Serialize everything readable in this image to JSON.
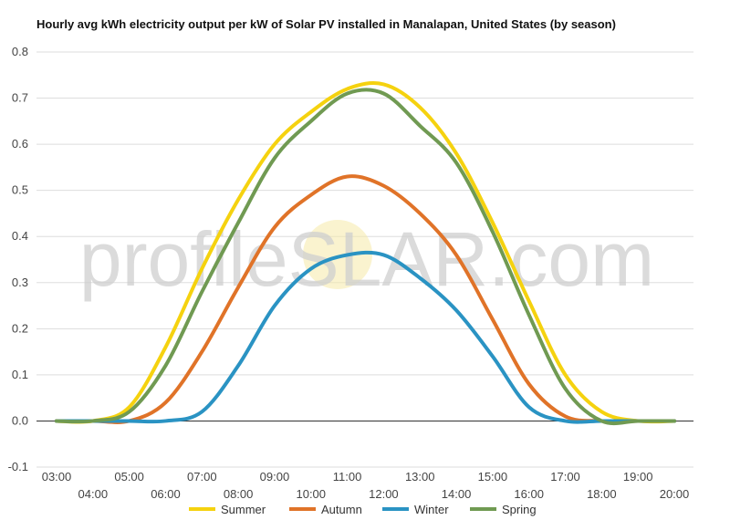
{
  "chart_data": {
    "type": "line",
    "title": "Hourly avg kWh electricity output per kW of Solar PV installed in Manalapan, United States (by season)",
    "xlabel": "",
    "ylabel": "",
    "x": [
      "03:00",
      "04:00",
      "05:00",
      "06:00",
      "07:00",
      "08:00",
      "09:00",
      "10:00",
      "11:00",
      "12:00",
      "13:00",
      "14:00",
      "15:00",
      "16:00",
      "17:00",
      "18:00",
      "19:00",
      "20:00"
    ],
    "ylim": [
      -0.1,
      0.8
    ],
    "yticks": [
      -0.1,
      0.0,
      0.1,
      0.2,
      0.3,
      0.4,
      0.5,
      0.6,
      0.7,
      0.8
    ],
    "grid": true,
    "legend": "bottom",
    "series": [
      {
        "name": "Summer",
        "color": "#f5d20f",
        "values": [
          0.0,
          0.0,
          0.03,
          0.16,
          0.33,
          0.48,
          0.6,
          0.67,
          0.72,
          0.73,
          0.68,
          0.58,
          0.43,
          0.26,
          0.1,
          0.02,
          0.0,
          0.0
        ]
      },
      {
        "name": "Autumn",
        "color": "#e07328",
        "values": [
          0.0,
          0.0,
          0.0,
          0.04,
          0.15,
          0.29,
          0.42,
          0.49,
          0.53,
          0.51,
          0.45,
          0.36,
          0.22,
          0.08,
          0.01,
          0.0,
          0.0,
          0.0
        ]
      },
      {
        "name": "Winter",
        "color": "#2a93c3",
        "values": [
          0.0,
          0.0,
          0.0,
          0.0,
          0.02,
          0.12,
          0.25,
          0.33,
          0.36,
          0.36,
          0.31,
          0.24,
          0.14,
          0.03,
          0.0,
          0.0,
          0.0,
          0.0
        ]
      },
      {
        "name": "Spring",
        "color": "#709a52",
        "values": [
          0.0,
          0.0,
          0.02,
          0.12,
          0.28,
          0.43,
          0.57,
          0.65,
          0.71,
          0.71,
          0.64,
          0.56,
          0.41,
          0.23,
          0.07,
          0.0,
          0.0,
          0.0
        ]
      }
    ]
  },
  "watermark": {
    "text_before": "profile",
    "text_s": "S",
    "text_after": "LAR.com"
  }
}
